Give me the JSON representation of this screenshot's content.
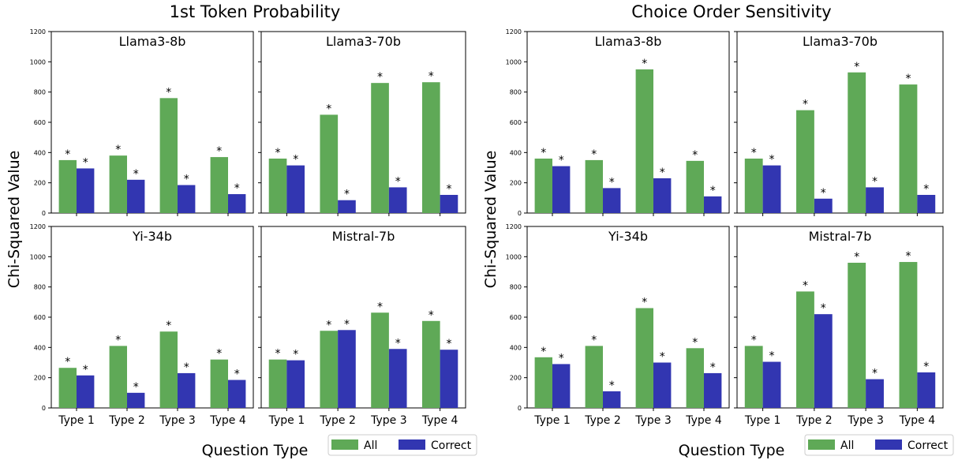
{
  "colors": {
    "all": "#5fa957",
    "correct": "#3236b1",
    "axis": "#000000",
    "text": "#000000"
  },
  "groups": [
    {
      "title": "1st Token Probability",
      "xlabel": "Question Type",
      "ylabel": "Chi-Squared Value",
      "legend": [
        "All",
        "Correct"
      ]
    },
    {
      "title": "Choice Order Sensitivity",
      "xlabel": "Question Type",
      "ylabel": "Chi-Squared Value",
      "legend": [
        "All",
        "Correct"
      ]
    }
  ],
  "chart_data": [
    {
      "type": "bar",
      "group": "1st Token Probability",
      "title": "Llama3-8b",
      "categories": [
        "Type 1",
        "Type 2",
        "Type 3",
        "Type 4"
      ],
      "series": [
        {
          "name": "All",
          "values": [
            350,
            380,
            760,
            370
          ]
        },
        {
          "name": "Correct",
          "values": [
            295,
            220,
            185,
            125
          ]
        }
      ],
      "ylim": [
        0,
        1200
      ],
      "yticks": [
        0,
        200,
        400,
        600,
        800,
        1000,
        1200
      ],
      "annotation": "*"
    },
    {
      "type": "bar",
      "group": "1st Token Probability",
      "title": "Llama3-70b",
      "categories": [
        "Type 1",
        "Type 2",
        "Type 3",
        "Type 4"
      ],
      "series": [
        {
          "name": "All",
          "values": [
            360,
            650,
            860,
            865
          ]
        },
        {
          "name": "Correct",
          "values": [
            315,
            85,
            170,
            120
          ]
        }
      ],
      "ylim": [
        0,
        1200
      ],
      "yticks": [
        0,
        200,
        400,
        600,
        800,
        1000,
        1200
      ],
      "annotation": "*"
    },
    {
      "type": "bar",
      "group": "1st Token Probability",
      "title": "Yi-34b",
      "categories": [
        "Type 1",
        "Type 2",
        "Type 3",
        "Type 4"
      ],
      "series": [
        {
          "name": "All",
          "values": [
            265,
            410,
            505,
            320
          ]
        },
        {
          "name": "Correct",
          "values": [
            215,
            100,
            230,
            185
          ]
        }
      ],
      "ylim": [
        0,
        1200
      ],
      "yticks": [
        0,
        200,
        400,
        600,
        800,
        1000,
        1200
      ],
      "annotation": "*"
    },
    {
      "type": "bar",
      "group": "1st Token Probability",
      "title": "Mistral-7b",
      "categories": [
        "Type 1",
        "Type 2",
        "Type 3",
        "Type 4"
      ],
      "series": [
        {
          "name": "All",
          "values": [
            320,
            510,
            630,
            575
          ]
        },
        {
          "name": "Correct",
          "values": [
            315,
            515,
            390,
            385
          ]
        }
      ],
      "ylim": [
        0,
        1200
      ],
      "yticks": [
        0,
        200,
        400,
        600,
        800,
        1000,
        1200
      ],
      "annotation": "*"
    },
    {
      "type": "bar",
      "group": "Choice Order Sensitivity",
      "title": "Llama3-8b",
      "categories": [
        "Type 1",
        "Type 2",
        "Type 3",
        "Type 4"
      ],
      "series": [
        {
          "name": "All",
          "values": [
            360,
            350,
            950,
            345
          ]
        },
        {
          "name": "Correct",
          "values": [
            310,
            165,
            230,
            110
          ]
        }
      ],
      "ylim": [
        0,
        1200
      ],
      "yticks": [
        0,
        200,
        400,
        600,
        800,
        1000,
        1200
      ],
      "annotation": "*"
    },
    {
      "type": "bar",
      "group": "Choice Order Sensitivity",
      "title": "Llama3-70b",
      "categories": [
        "Type 1",
        "Type 2",
        "Type 3",
        "Type 4"
      ],
      "series": [
        {
          "name": "All",
          "values": [
            360,
            680,
            930,
            850
          ]
        },
        {
          "name": "Correct",
          "values": [
            315,
            95,
            170,
            120
          ]
        }
      ],
      "ylim": [
        0,
        1200
      ],
      "yticks": [
        0,
        200,
        400,
        600,
        800,
        1000,
        1200
      ],
      "annotation": "*"
    },
    {
      "type": "bar",
      "group": "Choice Order Sensitivity",
      "title": "Yi-34b",
      "categories": [
        "Type 1",
        "Type 2",
        "Type 3",
        "Type 4"
      ],
      "series": [
        {
          "name": "All",
          "values": [
            335,
            410,
            660,
            395
          ]
        },
        {
          "name": "Correct",
          "values": [
            290,
            110,
            300,
            230
          ]
        }
      ],
      "ylim": [
        0,
        1200
      ],
      "yticks": [
        0,
        200,
        400,
        600,
        800,
        1000,
        1200
      ],
      "annotation": "*"
    },
    {
      "type": "bar",
      "group": "Choice Order Sensitivity",
      "title": "Mistral-7b",
      "categories": [
        "Type 1",
        "Type 2",
        "Type 3",
        "Type 4"
      ],
      "series": [
        {
          "name": "All",
          "values": [
            410,
            770,
            960,
            965
          ]
        },
        {
          "name": "Correct",
          "values": [
            305,
            620,
            190,
            235
          ]
        }
      ],
      "ylim": [
        0,
        1200
      ],
      "yticks": [
        0,
        200,
        400,
        600,
        800,
        1000,
        1200
      ],
      "annotation": "*"
    }
  ]
}
